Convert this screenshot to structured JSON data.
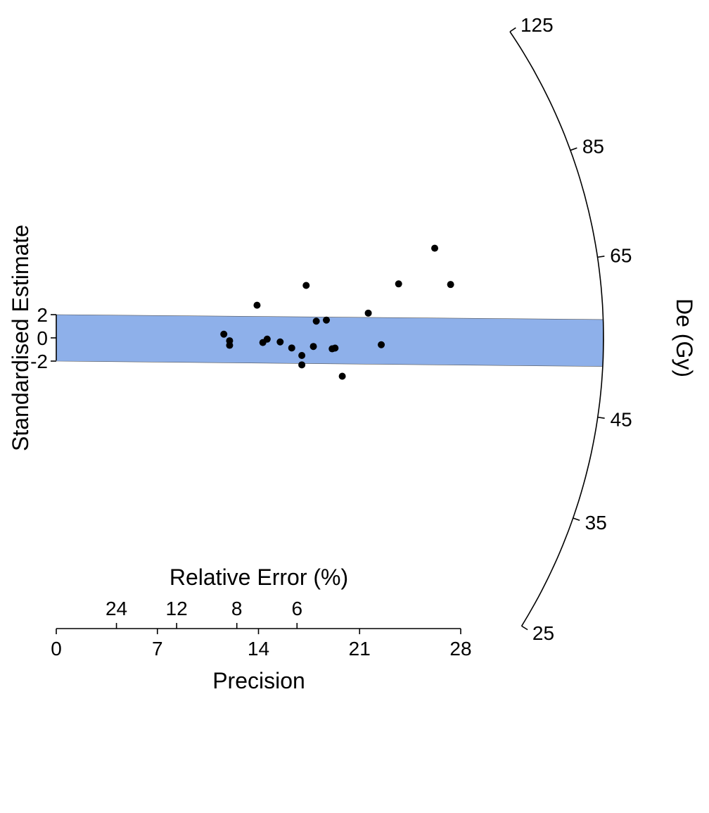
{
  "chart_data": {
    "type": "radial",
    "xlabel": "Precision",
    "x_ticks": [
      "0",
      "7",
      "14",
      "21",
      "28"
    ],
    "xlim": [
      0,
      28
    ],
    "relative_error_label": "Relative Error (%)",
    "relative_error_ticks": [
      "24",
      "12",
      "8",
      "6"
    ],
    "ylabel": "Standardised Estimate",
    "y_ticks": [
      "2",
      "0",
      "-2"
    ],
    "z_label": "De (Gy)",
    "z_ticks": [
      "25",
      "35",
      "45",
      "65",
      "85",
      "125"
    ],
    "central_band": {
      "from": 50.6,
      "to": 56.3,
      "color": "#8eb0ea"
    },
    "point_color": "#000000",
    "points": [
      {
        "precision": 11.6,
        "de": 55.5
      },
      {
        "precision": 12.0,
        "de": 52.9
      },
      {
        "precision": 12.0,
        "de": 51.2
      },
      {
        "precision": 13.9,
        "de": 66.1
      },
      {
        "precision": 14.3,
        "de": 52.5
      },
      {
        "precision": 14.6,
        "de": 53.6
      },
      {
        "precision": 15.5,
        "de": 52.8
      },
      {
        "precision": 16.3,
        "de": 51.2
      },
      {
        "precision": 17.0,
        "de": 49.4
      },
      {
        "precision": 17.0,
        "de": 47.1
      },
      {
        "precision": 17.3,
        "de": 70.1
      },
      {
        "precision": 17.8,
        "de": 51.8
      },
      {
        "precision": 18.0,
        "de": 58.5
      },
      {
        "precision": 18.7,
        "de": 58.6
      },
      {
        "precision": 19.1,
        "de": 51.4
      },
      {
        "precision": 19.3,
        "de": 51.6
      },
      {
        "precision": 19.8,
        "de": 45.7
      },
      {
        "precision": 21.6,
        "de": 59.6
      },
      {
        "precision": 22.5,
        "de": 52.6
      },
      {
        "precision": 23.7,
        "de": 65.7
      },
      {
        "precision": 26.2,
        "de": 72.5
      },
      {
        "precision": 27.3,
        "de": 63.9
      }
    ]
  }
}
